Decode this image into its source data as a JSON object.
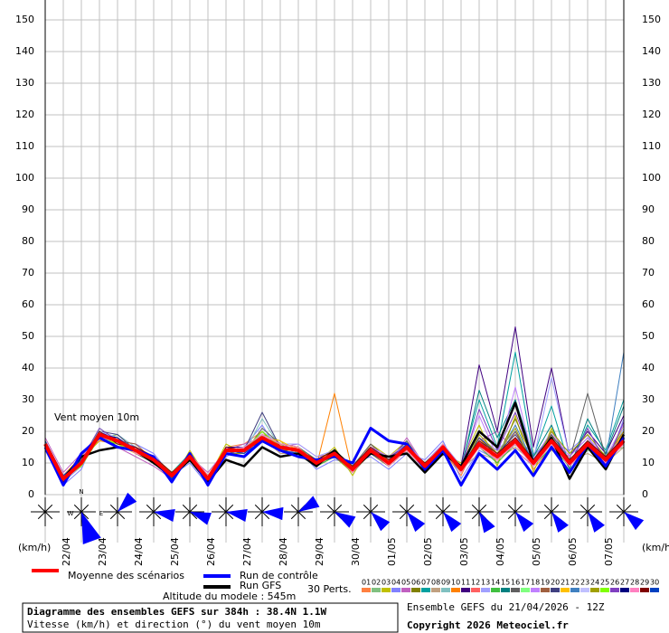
{
  "chart_data": {
    "type": "line",
    "annotation": "Vent moyen 10m",
    "y_unit_left": "(km/h)",
    "y_unit_right": "(km/h)",
    "altitude": "Altitude du modele : 545m",
    "perts_label": "30 Perts.",
    "title": "Diagramme des ensembles GEFS sur 384h : 38.4N 1.1W",
    "subtitle": "Vitesse (km/h) et direction (°) du vent moyen 10m",
    "run_info": "Ensemble GEFS du 21/04/2026 - 12Z",
    "copyright": "Copyright 2026 Meteociel.fr",
    "compass_labels": [
      "N",
      "W",
      "E"
    ],
    "categories": [
      null,
      "22/04",
      null,
      "23/04",
      null,
      "24/04",
      null,
      "25/04",
      null,
      "26/04",
      null,
      "27/04",
      null,
      "28/04",
      null,
      "29/04",
      null,
      "30/04",
      null,
      "01/05",
      null,
      "02/05",
      null,
      "03/05",
      null,
      "04/05",
      null,
      "05/05",
      null,
      "06/05",
      null,
      "07/05",
      null
    ],
    "ylim": [
      0,
      150
    ],
    "yticks": [
      0,
      10,
      20,
      30,
      40,
      50,
      60,
      70,
      80,
      90,
      100,
      110,
      120,
      130,
      140,
      150
    ],
    "grid": true,
    "wind_direction_deg": [
      null,
      160,
      45,
      100,
      110,
      100,
      95,
      60,
      120,
      135,
      140,
      140,
      150,
      140,
      145,
      145,
      130
    ],
    "wind_color": "#0000ff",
    "series": [
      {
        "name": "Moyenne des scénarios",
        "color": "#ff0000",
        "values": [
          16,
          5,
          10,
          19,
          17,
          14,
          11,
          6,
          12,
          5,
          14,
          14,
          18,
          15,
          14,
          10,
          13,
          8,
          14,
          10,
          15,
          9,
          15,
          8,
          16,
          12,
          17,
          10,
          17,
          10,
          16,
          11,
          17
        ]
      },
      {
        "name": "Run de contrôle",
        "color": "#0000ff",
        "values": [
          15,
          3,
          13,
          18,
          15,
          14,
          12,
          4,
          13,
          3,
          13,
          12,
          17,
          14,
          12,
          11,
          12,
          10,
          21,
          17,
          16,
          8,
          14,
          3,
          13,
          8,
          14,
          6,
          15,
          7,
          16,
          9,
          18
        ]
      },
      {
        "name": "Run GFS",
        "color": "#000000",
        "values": [
          15,
          5,
          12,
          14,
          15,
          14,
          10,
          6,
          11,
          4,
          11,
          9,
          15,
          12,
          13,
          9,
          14,
          8,
          13,
          12,
          13,
          7,
          13,
          9,
          20,
          15,
          29,
          10,
          18,
          5,
          15,
          8,
          19
        ]
      },
      {
        "name": "01",
        "color": "#ff8040",
        "values": [
          17,
          6,
          12,
          20,
          16,
          15,
          10,
          5,
          13,
          6,
          15,
          16,
          20,
          14,
          15,
          9,
          12,
          7,
          15,
          11,
          16,
          8,
          14,
          6,
          18,
          10,
          20,
          8,
          15,
          12,
          18,
          9,
          20
        ]
      },
      {
        "name": "02",
        "color": "#80c080",
        "values": [
          15,
          4,
          9,
          18,
          18,
          13,
          12,
          7,
          11,
          4,
          13,
          12,
          17,
          16,
          13,
          11,
          14,
          9,
          13,
          9,
          14,
          10,
          16,
          9,
          15,
          14,
          16,
          12,
          19,
          8,
          14,
          13,
          15
        ]
      },
      {
        "name": "03",
        "color": "#c0c000",
        "values": [
          16,
          5,
          11,
          17,
          19,
          14,
          11,
          4,
          14,
          5,
          16,
          13,
          19,
          17,
          12,
          10,
          15,
          6,
          16,
          12,
          17,
          7,
          13,
          10,
          22,
          9,
          25,
          7,
          21,
          9,
          17,
          10,
          22
        ]
      },
      {
        "name": "04",
        "color": "#8080ff",
        "values": [
          14,
          3,
          8,
          21,
          17,
          16,
          13,
          6,
          10,
          3,
          12,
          15,
          22,
          13,
          14,
          8,
          11,
          10,
          12,
          8,
          13,
          11,
          17,
          5,
          14,
          11,
          18,
          13,
          16,
          14,
          19,
          8,
          24
        ]
      },
      {
        "name": "05",
        "color": "#c060c0",
        "values": [
          18,
          7,
          13,
          19,
          15,
          12,
          9,
          5,
          12,
          7,
          14,
          16,
          18,
          15,
          16,
          12,
          13,
          8,
          15,
          10,
          18,
          9,
          15,
          7,
          17,
          20,
          14,
          9,
          20,
          11,
          15,
          12,
          16
        ]
      },
      {
        "name": "06",
        "color": "#808000",
        "values": [
          16,
          5,
          10,
          18,
          16,
          15,
          10,
          6,
          11,
          5,
          14,
          13,
          20,
          14,
          14,
          9,
          12,
          8,
          14,
          11,
          14,
          8,
          14,
          8,
          18,
          12,
          24,
          11,
          18,
          10,
          16,
          11,
          18
        ]
      },
      {
        "name": "07",
        "color": "#00a0a0",
        "values": [
          15,
          6,
          11,
          20,
          18,
          13,
          11,
          7,
          13,
          6,
          13,
          14,
          17,
          16,
          15,
          11,
          14,
          9,
          13,
          10,
          15,
          10,
          16,
          9,
          30,
          15,
          45,
          12,
          28,
          9,
          22,
          14,
          30
        ]
      },
      {
        "name": "08",
        "color": "#c0a080",
        "values": [
          17,
          4,
          9,
          19,
          17,
          14,
          12,
          5,
          12,
          4,
          15,
          15,
          18,
          13,
          13,
          10,
          12,
          7,
          16,
          9,
          16,
          9,
          13,
          8,
          13,
          11,
          15,
          10,
          14,
          11,
          13,
          10,
          15
        ]
      },
      {
        "name": "09",
        "color": "#80c0c0",
        "values": [
          16,
          5,
          10,
          18,
          19,
          15,
          11,
          6,
          13,
          5,
          14,
          13,
          24,
          15,
          14,
          10,
          13,
          8,
          14,
          10,
          17,
          9,
          15,
          8,
          16,
          12,
          17,
          10,
          17,
          10,
          16,
          11,
          17
        ]
      },
      {
        "name": "10",
        "color": "#ff8000",
        "values": [
          15,
          6,
          12,
          17,
          16,
          14,
          10,
          7,
          12,
          6,
          13,
          14,
          19,
          16,
          15,
          9,
          32,
          7,
          15,
          11,
          14,
          8,
          16,
          7,
          17,
          13,
          18,
          9,
          19,
          11,
          17,
          12,
          19
        ]
      },
      {
        "name": "11",
        "color": "#400080",
        "values": [
          16,
          5,
          11,
          20,
          17,
          15,
          12,
          5,
          11,
          4,
          15,
          15,
          18,
          14,
          13,
          11,
          12,
          9,
          13,
          12,
          15,
          10,
          14,
          9,
          41,
          20,
          53,
          15,
          40,
          12,
          20,
          13,
          25
        ]
      },
      {
        "name": "12",
        "color": "#ff6060",
        "values": [
          17,
          6,
          10,
          19,
          18,
          13,
          11,
          6,
          12,
          5,
          14,
          13,
          17,
          15,
          14,
          10,
          13,
          8,
          14,
          10,
          16,
          9,
          15,
          8,
          16,
          12,
          17,
          10,
          17,
          10,
          16,
          11,
          17
        ]
      },
      {
        "name": "13",
        "color": "#a0a0ff",
        "values": [
          15,
          4,
          9,
          18,
          16,
          14,
          10,
          5,
          13,
          6,
          13,
          12,
          20,
          16,
          16,
          12,
          14,
          9,
          15,
          11,
          14,
          8,
          14,
          9,
          18,
          14,
          20,
          11,
          37,
          12,
          18,
          10,
          21
        ]
      },
      {
        "name": "14",
        "color": "#40c040",
        "values": [
          16,
          5,
          12,
          19,
          17,
          15,
          11,
          7,
          11,
          5,
          15,
          14,
          19,
          14,
          13,
          9,
          12,
          7,
          13,
          9,
          15,
          10,
          16,
          7,
          15,
          10,
          16,
          9,
          15,
          9,
          15,
          10,
          16
        ]
      },
      {
        "name": "15",
        "color": "#008080",
        "values": [
          16,
          6,
          10,
          20,
          15,
          14,
          12,
          6,
          12,
          4,
          14,
          15,
          18,
          15,
          14,
          10,
          13,
          8,
          14,
          10,
          15,
          9,
          15,
          8,
          33,
          18,
          30,
          12,
          22,
          8,
          24,
          13,
          28
        ]
      },
      {
        "name": "16",
        "color": "#606060",
        "values": [
          14,
          5,
          11,
          18,
          18,
          13,
          10,
          5,
          13,
          6,
          13,
          13,
          21,
          16,
          15,
          11,
          14,
          9,
          16,
          11,
          17,
          9,
          14,
          8,
          16,
          12,
          20,
          10,
          18,
          11,
          32,
          12,
          20
        ]
      },
      {
        "name": "17",
        "color": "#80ff80",
        "values": [
          17,
          4,
          10,
          21,
          17,
          14,
          11,
          6,
          12,
          5,
          14,
          14,
          17,
          15,
          14,
          10,
          13,
          8,
          14,
          10,
          15,
          9,
          15,
          8,
          16,
          12,
          17,
          10,
          17,
          10,
          16,
          11,
          17
        ]
      },
      {
        "name": "18",
        "color": "#c080ff",
        "values": [
          16,
          6,
          9,
          19,
          16,
          15,
          12,
          7,
          11,
          4,
          15,
          13,
          18,
          14,
          13,
          10,
          12,
          8,
          15,
          12,
          16,
          10,
          16,
          9,
          25,
          12,
          34,
          11,
          20,
          12,
          18,
          12,
          22
        ]
      },
      {
        "name": "19",
        "color": "#a06040",
        "values": [
          15,
          5,
          12,
          18,
          17,
          16,
          11,
          5,
          12,
          6,
          14,
          15,
          19,
          16,
          15,
          9,
          13,
          7,
          13,
          9,
          14,
          8,
          14,
          7,
          15,
          11,
          16,
          9,
          16,
          9,
          15,
          10,
          16
        ]
      },
      {
        "name": "20",
        "color": "#404080",
        "values": [
          16,
          4,
          11,
          20,
          19,
          14,
          10,
          6,
          13,
          5,
          13,
          14,
          26,
          15,
          14,
          10,
          14,
          8,
          14,
          10,
          15,
          9,
          15,
          8,
          18,
          13,
          19,
          11,
          19,
          11,
          17,
          12,
          18
        ]
      },
      {
        "name": "21",
        "color": "#ffc000",
        "values": [
          17,
          5,
          10,
          19,
          16,
          13,
          11,
          7,
          12,
          5,
          14,
          13,
          18,
          17,
          14,
          11,
          13,
          9,
          14,
          11,
          15,
          10,
          15,
          9,
          16,
          12,
          17,
          10,
          17,
          10,
          16,
          11,
          17
        ]
      },
      {
        "name": "22",
        "color": "#4080c0",
        "values": [
          16,
          6,
          11,
          18,
          17,
          15,
          12,
          5,
          11,
          4,
          15,
          14,
          17,
          14,
          13,
          10,
          12,
          8,
          15,
          10,
          16,
          9,
          14,
          8,
          17,
          12,
          22,
          10,
          18,
          10,
          17,
          11,
          45
        ]
      },
      {
        "name": "23",
        "color": "#c0c0ff",
        "values": [
          15,
          5,
          10,
          20,
          18,
          14,
          10,
          6,
          12,
          5,
          14,
          15,
          19,
          15,
          14,
          9,
          13,
          8,
          14,
          10,
          15,
          9,
          15,
          8,
          16,
          12,
          17,
          10,
          17,
          10,
          16,
          11,
          17
        ]
      },
      {
        "name": "24",
        "color": "#a0a000",
        "values": [
          16,
          4,
          12,
          19,
          17,
          13,
          11,
          5,
          13,
          6,
          13,
          13,
          18,
          16,
          15,
          10,
          12,
          7,
          14,
          9,
          14,
          8,
          16,
          7,
          19,
          13,
          21,
          9,
          20,
          13,
          19,
          12,
          20
        ]
      },
      {
        "name": "25",
        "color": "#80ff00",
        "values": [
          17,
          5,
          9,
          18,
          16,
          14,
          12,
          7,
          12,
          5,
          14,
          14,
          20,
          15,
          14,
          11,
          14,
          9,
          13,
          10,
          15,
          10,
          15,
          9,
          16,
          12,
          17,
          10,
          17,
          10,
          16,
          11,
          17
        ]
      },
      {
        "name": "26",
        "color": "#8040c0",
        "values": [
          15,
          6,
          11,
          21,
          17,
          15,
          11,
          6,
          11,
          4,
          15,
          13,
          18,
          14,
          13,
          10,
          13,
          8,
          15,
          11,
          16,
          9,
          14,
          8,
          27,
          14,
          26,
          11,
          18,
          9,
          21,
          10,
          23
        ]
      },
      {
        "name": "27",
        "color": "#000080",
        "values": [
          16,
          5,
          10,
          19,
          18,
          14,
          10,
          5,
          12,
          5,
          14,
          14,
          17,
          15,
          14,
          10,
          12,
          8,
          14,
          10,
          15,
          9,
          15,
          8,
          16,
          12,
          17,
          10,
          17,
          10,
          16,
          11,
          17
        ]
      },
      {
        "name": "28",
        "color": "#ff80c0",
        "values": [
          16,
          5,
          12,
          18,
          17,
          13,
          11,
          6,
          13,
          6,
          13,
          15,
          19,
          16,
          15,
          9,
          13,
          7,
          14,
          9,
          14,
          8,
          16,
          7,
          15,
          11,
          16,
          9,
          16,
          9,
          15,
          10,
          16
        ]
      },
      {
        "name": "29",
        "color": "#800000",
        "values": [
          15,
          4,
          10,
          20,
          16,
          15,
          12,
          7,
          12,
          5,
          15,
          14,
          18,
          15,
          14,
          11,
          14,
          9,
          15,
          11,
          15,
          10,
          15,
          9,
          17,
          13,
          18,
          11,
          18,
          11,
          17,
          12,
          18
        ]
      },
      {
        "name": "30",
        "color": "#0040c0",
        "values": [
          17,
          6,
          11,
          19,
          17,
          14,
          11,
          5,
          11,
          4,
          14,
          13,
          17,
          14,
          13,
          10,
          12,
          8,
          13,
          10,
          16,
          9,
          14,
          8,
          16,
          12,
          17,
          10,
          17,
          10,
          16,
          11,
          17
        ]
      }
    ]
  }
}
